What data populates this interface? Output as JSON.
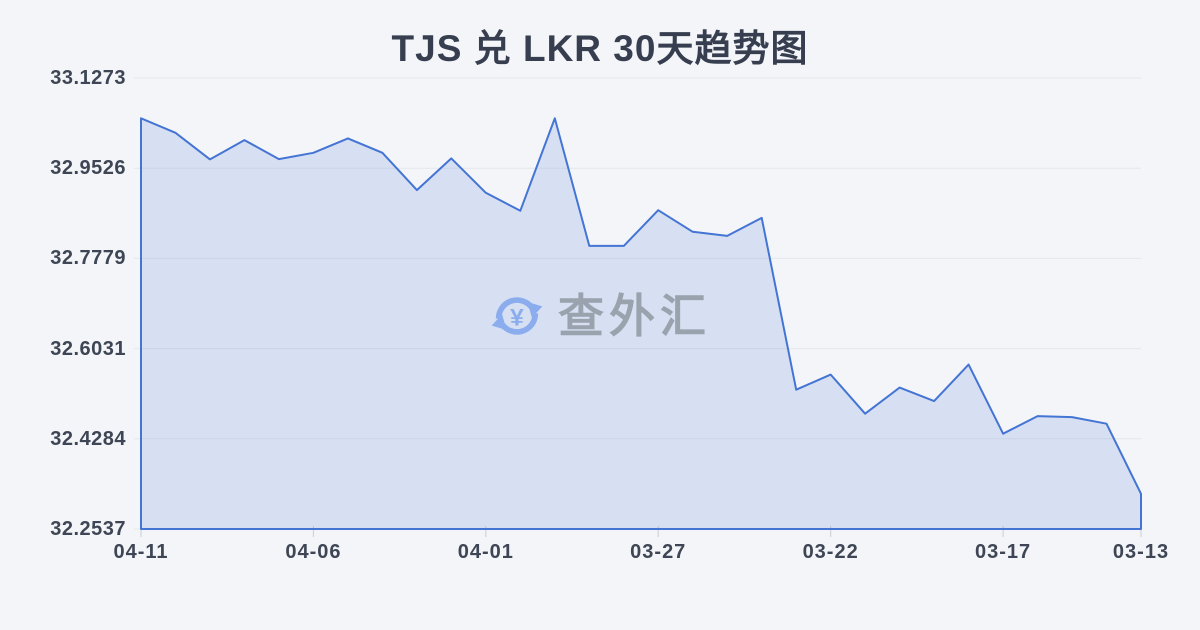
{
  "page": {
    "background_color": "#f3f5f8"
  },
  "chart_data": {
    "type": "area",
    "title": "TJS 兑 LKR 30天趋势图",
    "xlabel": "",
    "ylabel": "",
    "x": [
      "04-11",
      "04-10",
      "04-09",
      "04-08",
      "04-07",
      "04-06",
      "04-05",
      "04-04",
      "04-03",
      "04-02",
      "04-01",
      "03-31",
      "03-30",
      "03-29",
      "03-28",
      "03-27",
      "03-26",
      "03-25",
      "03-24",
      "03-23",
      "03-22",
      "03-21",
      "03-20",
      "03-19",
      "03-18",
      "03-17",
      "03-16",
      "03-15",
      "03-14",
      "03-13"
    ],
    "values": [
      33.0492,
      33.0212,
      32.9696,
      33.0071,
      32.9702,
      32.9824,
      33.0104,
      32.9824,
      32.9101,
      32.9716,
      32.9049,
      32.87,
      33.0492,
      32.8021,
      32.8021,
      32.8713,
      32.8293,
      32.8215,
      32.8564,
      32.5236,
      32.5527,
      32.4771,
      32.5275,
      32.5015,
      32.5721,
      32.4383,
      32.4724,
      32.4705,
      32.4577,
      32.3219
    ],
    "ylim": [
      32.2537,
      33.1273
    ],
    "y_tick_labels": [
      "33.1273",
      "32.9526",
      "32.7779",
      "32.6031",
      "32.4284",
      "32.2537"
    ],
    "x_tick_indices": [
      0,
      5,
      10,
      15,
      20,
      25,
      29
    ],
    "x_tick_labels": [
      "04-11",
      "04-06",
      "04-01",
      "03-27",
      "03-22",
      "03-17",
      "03-13"
    ],
    "grid": true,
    "legend": false,
    "colors": {
      "line": "#4474d4",
      "fill": "rgba(68,116,212,0.16)",
      "grid": "#e4e7ec",
      "tick": "#c9ced6",
      "axis_label": "#3e4554",
      "title": "#363e4f",
      "background": "#f3f5f8"
    }
  },
  "watermark": {
    "text": "查外汇",
    "icon": "currency-exchange-icon",
    "icon_symbol": "¥",
    "icon_color": "#8badee",
    "text_color": "#9aa2ae"
  }
}
